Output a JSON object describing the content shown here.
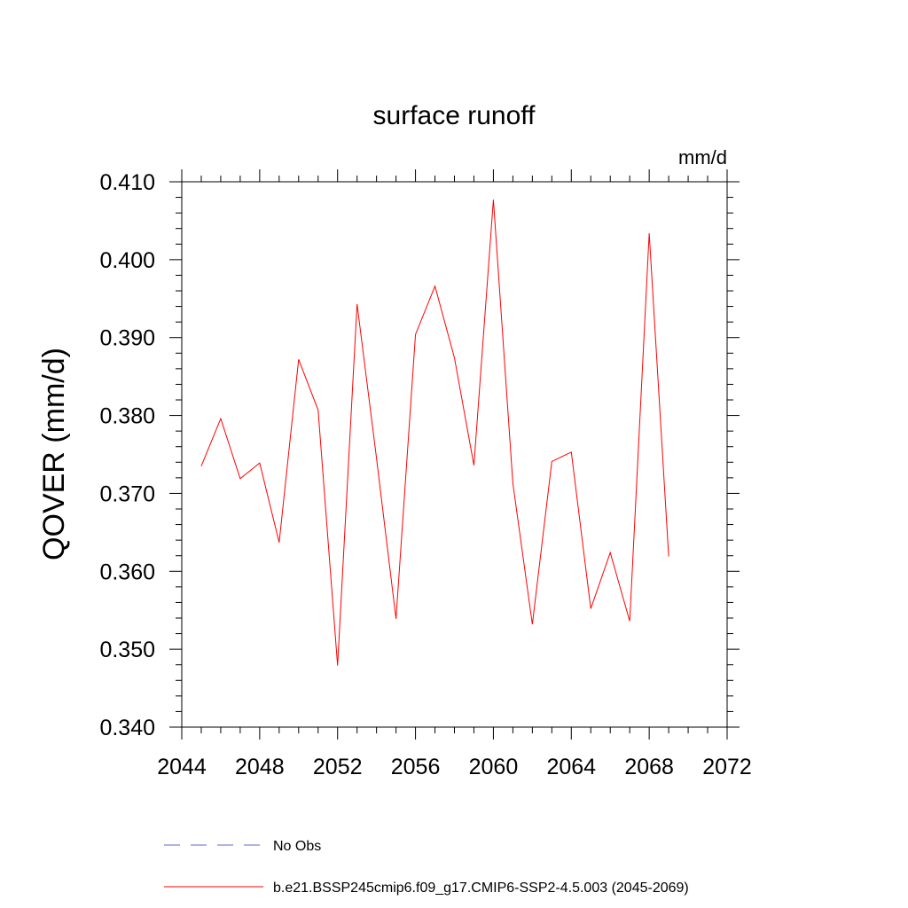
{
  "chart_data": {
    "type": "line",
    "title": "surface runoff",
    "units_label": "mm/d",
    "ylabel": "QOVER  (mm/d)",
    "xlabel": "",
    "xlim": [
      2044,
      2072
    ],
    "ylim": [
      0.34,
      0.41
    ],
    "x_ticks": [
      2044,
      2048,
      2052,
      2056,
      2060,
      2064,
      2068,
      2072
    ],
    "x_tick_labels": [
      "2044",
      "2048",
      "2052",
      "2056",
      "2060",
      "2064",
      "2068",
      "2072"
    ],
    "y_ticks": [
      0.34,
      0.35,
      0.36,
      0.37,
      0.38,
      0.39,
      0.4,
      0.41
    ],
    "y_tick_labels": [
      "0.340",
      "0.350",
      "0.360",
      "0.370",
      "0.380",
      "0.390",
      "0.400",
      "0.410"
    ],
    "grid": false,
    "series": [
      {
        "name": "b.e21.BSSP245cmip6.f09_g17.CMIP6-SSP2-4.5.003 (2045-2069)",
        "color": "#ff0000",
        "style": "solid",
        "x": [
          2045,
          2046,
          2047,
          2048,
          2049,
          2050,
          2051,
          2052,
          2053,
          2054,
          2055,
          2056,
          2057,
          2058,
          2059,
          2060,
          2061,
          2062,
          2063,
          2064,
          2065,
          2066,
          2067,
          2068,
          2069
        ],
        "values": [
          0.3735,
          0.3796,
          0.3719,
          0.3739,
          0.3637,
          0.3872,
          0.3807,
          0.3479,
          0.3943,
          0.3745,
          0.3539,
          0.3904,
          0.3966,
          0.3874,
          0.3736,
          0.4077,
          0.3713,
          0.3532,
          0.3741,
          0.3753,
          0.3552,
          0.3624,
          0.3536,
          0.4034,
          0.3619
        ]
      }
    ],
    "legend": {
      "placement": "bottom",
      "entries": [
        {
          "label": "No Obs",
          "color": "#6666cc",
          "style": "dashed"
        },
        {
          "label": "b.e21.BSSP245cmip6.f09_g17.CMIP6-SSP2-4.5.003 (2045-2069)",
          "color": "#ff0000",
          "style": "solid"
        }
      ]
    }
  }
}
